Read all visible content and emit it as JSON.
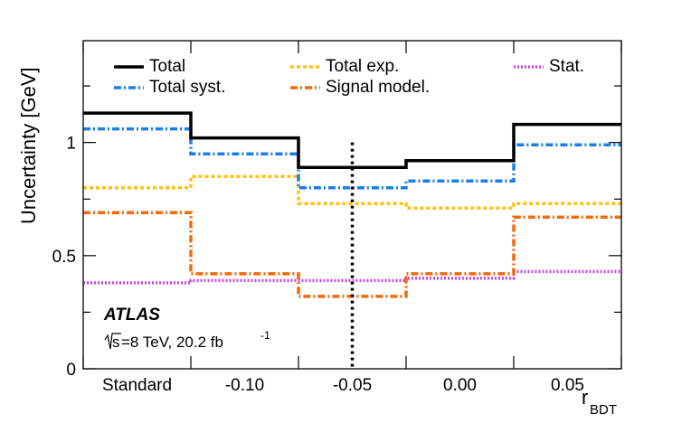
{
  "chart_data": {
    "type": "line",
    "style": "step",
    "xlabel": "r",
    "xlabel_sub": "BDT",
    "ylabel": "Uncertainty [GeV]",
    "ylim": [
      0,
      1.45
    ],
    "yticks": [
      0,
      0.5,
      1
    ],
    "ytick_labels": [
      "0",
      "0.5",
      "1"
    ],
    "bin_labels": [
      "Standard",
      "-0.10",
      "-0.05",
      "0.00",
      "0.05"
    ],
    "bin_edges": [
      0,
      1,
      2,
      3,
      4,
      5
    ],
    "xlim": [
      0,
      5
    ],
    "marked_bin_center": 2.5,
    "experiment_label": "ATLAS",
    "energy_label_sqrt": "s",
    "energy_label_rest": "=8 TeV, 20.2 fb",
    "energy_label_sup": "-1",
    "series": [
      {
        "name": "Total",
        "color": "#000000",
        "dash": "solid",
        "values": [
          1.13,
          1.02,
          0.89,
          0.92,
          1.08
        ]
      },
      {
        "name": "Total syst.",
        "color": "#1a7fe8",
        "dash": "dashdot",
        "values": [
          1.06,
          0.95,
          0.8,
          0.83,
          0.99
        ]
      },
      {
        "name": "Total exp.",
        "color": "#ffc20e",
        "dash": "dotted",
        "values": [
          0.8,
          0.85,
          0.73,
          0.71,
          0.73
        ]
      },
      {
        "name": "Signal model.",
        "color": "#f26a0a",
        "dash": "dashdot",
        "values": [
          0.69,
          0.42,
          0.32,
          0.42,
          0.67
        ]
      },
      {
        "name": "Stat.",
        "color": "#c94ce0",
        "dash": "dotted",
        "values": [
          0.38,
          0.39,
          0.39,
          0.4,
          0.43
        ]
      }
    ]
  }
}
